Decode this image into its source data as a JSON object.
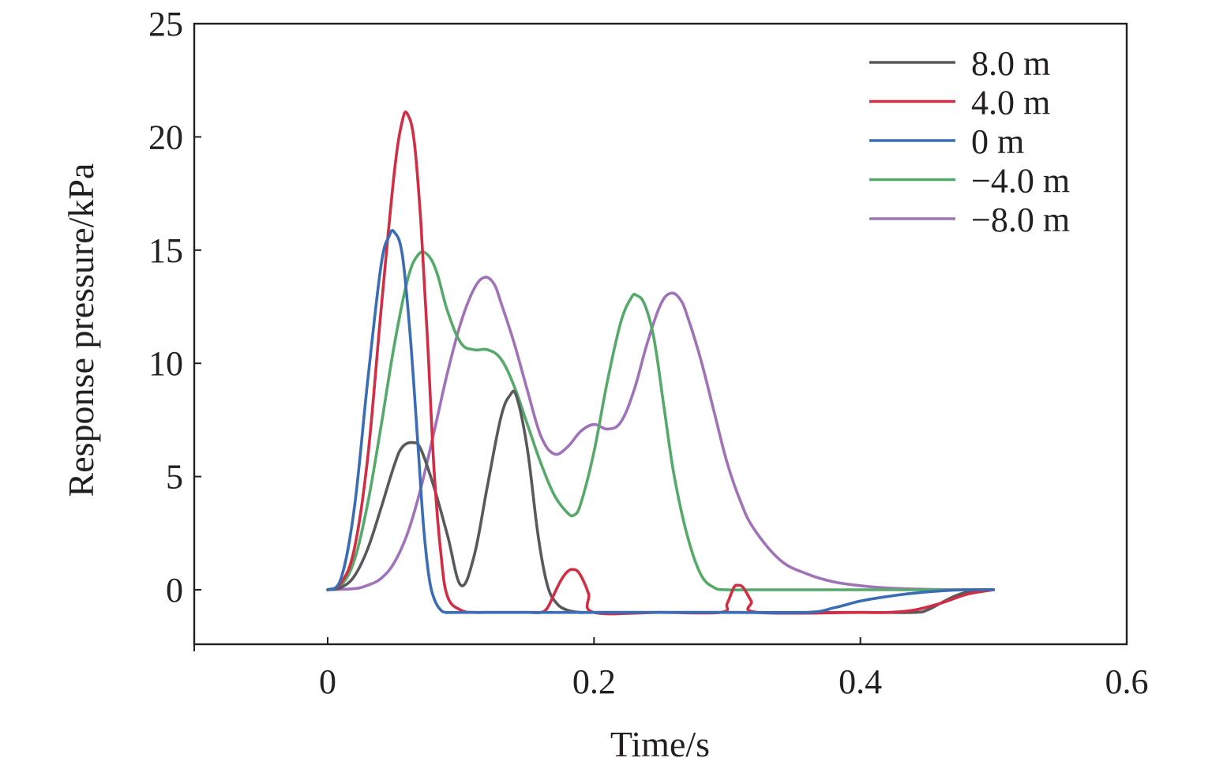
{
  "chart_data": {
    "type": "line",
    "title": "",
    "xlabel": "Time/s",
    "ylabel": "Response pressure/kPa",
    "xlim": [
      -0.1,
      0.6
    ],
    "ylim": [
      -2.4,
      25
    ],
    "xticks": [
      0,
      0.2,
      0.4,
      0.6
    ],
    "xtick_labels": [
      "0",
      "0.2",
      "0.4",
      "0.6"
    ],
    "yticks": [
      0,
      5,
      10,
      15,
      20,
      25
    ],
    "ytick_labels": [
      "0",
      "5",
      "10",
      "15",
      "20",
      "25"
    ],
    "grid": false,
    "legend_position": "top-right",
    "series": [
      {
        "name": "8.0 m",
        "color": "#58595b",
        "x": [
          0,
          0.01,
          0.02,
          0.03,
          0.04,
          0.05,
          0.056,
          0.064,
          0.07,
          0.08,
          0.09,
          0.1,
          0.11,
          0.12,
          0.13,
          0.137,
          0.142,
          0.15,
          0.158,
          0.165,
          0.172,
          0.18,
          0.19,
          0.2,
          0.3,
          0.4,
          0.44,
          0.45,
          0.46,
          0.47,
          0.48,
          0.49,
          0.5
        ],
        "y": [
          0,
          0.1,
          0.6,
          1.8,
          3.6,
          5.5,
          6.3,
          6.5,
          6.2,
          4.5,
          2.4,
          0.2,
          1.5,
          4.6,
          7.6,
          8.6,
          8.5,
          6.2,
          2.4,
          0.2,
          -0.6,
          -0.9,
          -1.0,
          -1.0,
          -1.0,
          -1.0,
          -1.0,
          -0.9,
          -0.6,
          -0.3,
          -0.1,
          0,
          0
        ]
      },
      {
        "name": "4.0 m",
        "color": "#d12d45",
        "x": [
          0,
          0.01,
          0.02,
          0.03,
          0.04,
          0.05,
          0.056,
          0.06,
          0.065,
          0.07,
          0.075,
          0.08,
          0.085,
          0.09,
          0.1,
          0.11,
          0.12,
          0.15,
          0.16,
          0.165,
          0.17,
          0.175,
          0.18,
          0.184,
          0.188,
          0.192,
          0.196,
          0.2,
          0.25,
          0.295,
          0.3,
          0.305,
          0.308,
          0.312,
          0.318,
          0.323,
          0.4,
          0.42,
          0.44,
          0.46,
          0.48,
          0.5
        ],
        "y": [
          0,
          0.3,
          1.8,
          5.8,
          12.3,
          18.4,
          20.7,
          21.0,
          19.8,
          16.2,
          11.0,
          5.2,
          1.6,
          -0.3,
          -0.9,
          -1.0,
          -1.0,
          -1.0,
          -1.0,
          -0.8,
          -0.2,
          0.4,
          0.8,
          0.9,
          0.8,
          0.4,
          -0.2,
          -1.0,
          -1.0,
          -1.0,
          -0.6,
          0.1,
          0.2,
          0.1,
          -0.5,
          -1.0,
          -1.0,
          -1.0,
          -0.9,
          -0.6,
          -0.2,
          0
        ]
      },
      {
        "name": "0 m",
        "color": "#3a6db5",
        "x": [
          0,
          0.01,
          0.02,
          0.03,
          0.04,
          0.046,
          0.05,
          0.056,
          0.062,
          0.068,
          0.072,
          0.076,
          0.08,
          0.085,
          0.09,
          0.1,
          0.2,
          0.3,
          0.36,
          0.38,
          0.4,
          0.42,
          0.44,
          0.46,
          0.48,
          0.5
        ],
        "y": [
          0,
          0.5,
          3.6,
          9.2,
          14.3,
          15.6,
          15.8,
          14.8,
          11.2,
          6.2,
          2.8,
          0.6,
          -0.4,
          -0.9,
          -1.0,
          -1.0,
          -1.0,
          -1.0,
          -1.0,
          -0.8,
          -0.5,
          -0.3,
          -0.15,
          -0.05,
          0,
          0
        ]
      },
      {
        "name": "−4.0 m",
        "color": "#55aa6a",
        "x": [
          0,
          0.01,
          0.02,
          0.03,
          0.04,
          0.05,
          0.06,
          0.068,
          0.075,
          0.082,
          0.09,
          0.1,
          0.11,
          0.12,
          0.13,
          0.14,
          0.15,
          0.16,
          0.17,
          0.18,
          0.185,
          0.19,
          0.2,
          0.21,
          0.22,
          0.228,
          0.232,
          0.238,
          0.245,
          0.252,
          0.26,
          0.27,
          0.28,
          0.29,
          0.3,
          0.32,
          0.4,
          0.5
        ],
        "y": [
          0,
          0.2,
          1.3,
          3.8,
          7.2,
          10.8,
          13.7,
          14.8,
          14.8,
          14.0,
          12.3,
          10.9,
          10.6,
          10.6,
          10.2,
          9.0,
          7.3,
          5.6,
          4.2,
          3.4,
          3.3,
          3.8,
          6.1,
          9.2,
          11.8,
          12.9,
          13.0,
          12.6,
          11.1,
          8.3,
          5.1,
          2.4,
          0.7,
          0.1,
          0,
          0,
          0,
          0
        ]
      },
      {
        "name": "−8.0 m",
        "color": "#9f72b9",
        "x": [
          0,
          0.02,
          0.03,
          0.04,
          0.05,
          0.06,
          0.07,
          0.08,
          0.09,
          0.1,
          0.11,
          0.118,
          0.125,
          0.13,
          0.14,
          0.15,
          0.16,
          0.17,
          0.18,
          0.19,
          0.2,
          0.21,
          0.22,
          0.23,
          0.24,
          0.25,
          0.258,
          0.265,
          0.27,
          0.28,
          0.29,
          0.3,
          0.31,
          0.32,
          0.34,
          0.36,
          0.38,
          0.4,
          0.42,
          0.45,
          0.48,
          0.5
        ],
        "y": [
          0,
          0.05,
          0.2,
          0.5,
          1.2,
          2.5,
          4.5,
          7.0,
          9.6,
          11.8,
          13.3,
          13.8,
          13.5,
          12.7,
          10.9,
          8.8,
          6.8,
          6.0,
          6.3,
          7.0,
          7.3,
          7.1,
          7.4,
          8.8,
          10.9,
          12.6,
          13.1,
          12.8,
          12.1,
          10.2,
          7.9,
          5.6,
          3.9,
          2.7,
          1.3,
          0.7,
          0.35,
          0.18,
          0.08,
          0.02,
          0,
          0
        ]
      }
    ]
  }
}
